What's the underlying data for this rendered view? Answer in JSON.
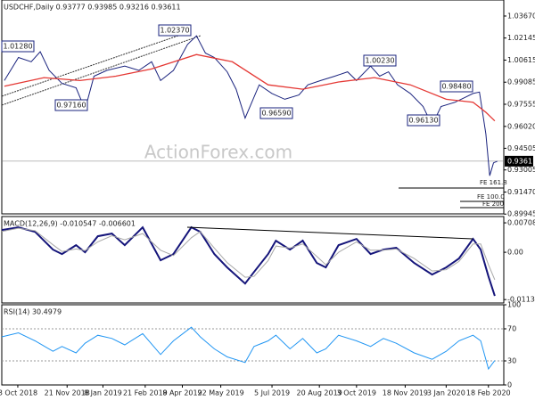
{
  "chart_data": [
    {
      "type": "line",
      "title": "USDCHF,Daily  0.93777 0.93985 0.93216 0.93611",
      "xlim": [
        0,
        392
      ],
      "ylim": [
        0.8996,
        1.0478
      ],
      "yticks": [
        {
          "value": 1.0367,
          "label": "1.03670"
        },
        1.02145,
        1.00615,
        0.99085,
        0.97555,
        {
          "value": 0.9602,
          "label": "0.96020"
        },
        0.94505,
        0.93005,
        {
          "value": 0.9147,
          "label": "0.91470"
        },
        0.89945
      ],
      "last_price": 0.93611,
      "watermark": "ActionForex.com",
      "annotations": [
        "1.01280",
        "0.97160",
        "1.02370",
        "0.96590",
        "1.00230",
        "0.98480",
        "0.96130"
      ],
      "fe_levels": [
        "FE 161.8",
        "FE 100.0",
        "FE 200"
      ],
      "series": [
        {
          "name": "USDCHF",
          "color": "#1a237e",
          "x": [
            2,
            13,
            23,
            30,
            37,
            47,
            58,
            65,
            72,
            82,
            96,
            107,
            117,
            124,
            134,
            145,
            152,
            159,
            166,
            176,
            183,
            190,
            201,
            211,
            221,
            232,
            239,
            249,
            260,
            270,
            277,
            288,
            295,
            302,
            309,
            319,
            329,
            336,
            343,
            354,
            361,
            368,
            373,
            378,
            381,
            384,
            387
          ],
          "values": [
            0.992,
            1.008,
            1.005,
            1.012,
            0.999,
            0.99,
            0.987,
            0.972,
            0.995,
            0.999,
            1.002,
            0.999,
            1.005,
            0.992,
            0.999,
            1.017,
            1.023,
            1.011,
            1.008,
            0.998,
            0.986,
            0.966,
            0.989,
            0.983,
            0.979,
            0.982,
            0.989,
            0.992,
            0.995,
            0.998,
            0.992,
            1.002,
            0.995,
            0.998,
            0.989,
            0.983,
            0.974,
            0.961,
            0.974,
            0.977,
            0.98,
            0.983,
            0.984,
            0.955,
            0.926,
            0.935,
            0.9361
          ]
        },
        {
          "name": "MA",
          "color": "#e53935",
          "x": [
            2,
            33,
            61,
            89,
            117,
            152,
            180,
            208,
            235,
            263,
            291,
            319,
            347,
            368,
            378,
            385
          ],
          "values": [
            0.988,
            0.994,
            0.992,
            0.995,
            1.0,
            1.01,
            1.005,
            0.989,
            0.986,
            0.991,
            0.994,
            0.989,
            0.979,
            0.977,
            0.97,
            0.964
          ]
        }
      ]
    },
    {
      "type": "line",
      "title": "MACD(12,26,9) -0.010547 -0.006601",
      "xlim": [
        0,
        392
      ],
      "ylim": [
        -0.0122,
        0.0086
      ],
      "yticks": [
        0.007086,
        {
          "value": 0,
          "label": "0.00"
        },
        -0.011386
      ],
      "series": [
        {
          "name": "MACD",
          "color": "#14147a",
          "x": [
            0,
            13,
            26,
            40,
            47,
            58,
            65,
            75,
            86,
            96,
            110,
            124,
            134,
            148,
            155,
            166,
            176,
            190,
            197,
            208,
            214,
            225,
            235,
            246,
            253,
            263,
            277,
            288,
            298,
            308,
            322,
            336,
            347,
            357,
            368,
            374,
            380,
            385
          ],
          "values": [
            0.00537,
            0.00601,
            0.00494,
            0.00064,
            -0.00043,
            0.00172,
            0,
            0.00387,
            0.00451,
            0.00172,
            0.00601,
            -0.00193,
            -0.00043,
            0.00601,
            0.00494,
            -0.00043,
            -0.00365,
            -0.00752,
            -0.00473,
            -0.00043,
            0.00279,
            0.00064,
            0.00279,
            -0.00258,
            -0.00365,
            0.00172,
            0.00322,
            -0.00043,
            0.00064,
            0.00107,
            -0.00258,
            -0.00537,
            -0.00365,
            -0.0015,
            0.00322,
            0.00064,
            -0.0058,
            -0.0105
          ]
        },
        {
          "name": "Signal",
          "color": "#a8a8a8",
          "x": [
            0,
            13,
            26,
            40,
            47,
            58,
            65,
            75,
            86,
            96,
            110,
            124,
            134,
            148,
            155,
            166,
            176,
            190,
            197,
            208,
            214,
            225,
            235,
            246,
            253,
            263,
            277,
            288,
            298,
            308,
            322,
            336,
            347,
            357,
            368,
            374,
            380,
            385
          ],
          "values": [
            0.005,
            0.0058,
            0.0052,
            0.0018,
            0.0002,
            0.0008,
            0.0004,
            0.0025,
            0.004,
            0.003,
            0.0045,
            0.0005,
            -0.0008,
            0.0035,
            0.005,
            0.001,
            -0.0025,
            -0.006,
            -0.0058,
            -0.002,
            0.0015,
            0.001,
            0.002,
            -0.001,
            -0.003,
            0.0,
            0.0025,
            0.0005,
            0.0005,
            0.0008,
            -0.0015,
            -0.0045,
            -0.0042,
            -0.0022,
            0.002,
            0.002,
            -0.003,
            -0.0066
          ]
        }
      ]
    },
    {
      "type": "line",
      "title": "RSI(14) 30.4979",
      "xlim": [
        0,
        392
      ],
      "ylim": [
        0,
        100
      ],
      "yticks": [
        100,
        70,
        30,
        0
      ],
      "xticks": [
        {
          "value": 12.5,
          "label": "8 Oct 2018"
        },
        {
          "value": 51,
          "label": "21 Nov 2018"
        },
        {
          "value": 79,
          "label": "8 Jan 2019"
        },
        {
          "value": 112,
          "label": "21 Feb 2019"
        },
        {
          "value": 141,
          "label": "8 Apr 2019"
        },
        {
          "value": 171,
          "label": "22 May 2019"
        },
        {
          "value": 211,
          "label": "5 Jul 2019"
        },
        {
          "value": 248,
          "label": "20 Aug 2019"
        },
        {
          "value": 277,
          "label": "3 Oct 2019"
        },
        {
          "value": 315,
          "label": "18 Nov 2019"
        },
        {
          "value": 347,
          "label": "3 Jan 2020"
        },
        {
          "value": 380,
          "label": "18 Feb 2020"
        }
      ],
      "series": [
        {
          "name": "RSI",
          "color": "#2196f3",
          "x": [
            0,
            13,
            26,
            40,
            47,
            58,
            65,
            75,
            86,
            96,
            110,
            124,
            134,
            148,
            155,
            166,
            176,
            190,
            197,
            208,
            214,
            225,
            235,
            246,
            253,
            263,
            277,
            288,
            298,
            308,
            322,
            336,
            347,
            357,
            368,
            374,
            380,
            385
          ],
          "values": [
            60,
            65,
            55,
            42,
            48,
            40,
            52,
            62,
            58,
            50,
            64,
            38,
            55,
            72,
            60,
            45,
            35,
            28,
            48,
            55,
            62,
            45,
            58,
            40,
            45,
            62,
            55,
            48,
            58,
            52,
            40,
            32,
            42,
            55,
            62,
            55,
            20,
            30.5
          ]
        }
      ]
    }
  ]
}
